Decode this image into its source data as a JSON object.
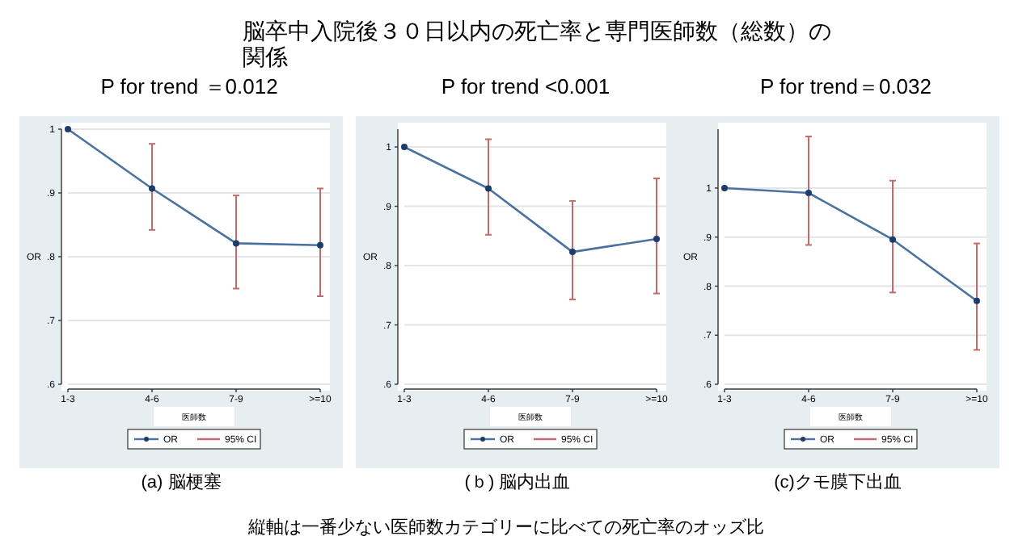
{
  "chart_data": [
    {
      "type": "line",
      "title": "P for trend ＝0.012",
      "xlabel": "医師数",
      "ylabel": "OR",
      "categories": [
        "1-3",
        "4-6",
        "7-9",
        ">=10"
      ],
      "series": [
        {
          "name": "OR",
          "color": "#4a72a0",
          "values": [
            1.0,
            0.907,
            0.821,
            0.818
          ],
          "errors": [
            null,
            [
              0.842,
              0.977
            ],
            [
              0.75,
              0.896
            ],
            [
              0.738,
              0.907
            ]
          ]
        }
      ],
      "ylim": [
        0.6,
        1.0
      ],
      "yticks": [
        {
          "value": 0.6,
          "label": ".6"
        },
        {
          "value": 0.7,
          "label": ".7"
        },
        {
          "value": 0.8,
          "label": ".8"
        },
        {
          "value": 0.9,
          "label": ".9"
        },
        {
          "value": 1,
          "label": "1"
        }
      ],
      "grid": "y",
      "marker": "circle",
      "legend": "bottom",
      "annotations": [
        "95% CI",
        "(a) 脳梗塞"
      ]
    },
    {
      "type": "line",
      "title": "P for trend <0.001",
      "xlabel": "医師数",
      "ylabel": "OR",
      "categories": [
        "1-3",
        "4-6",
        "7-9",
        ">=10"
      ],
      "series": [
        {
          "name": "OR",
          "color": "#4a72a0",
          "values": [
            1.0,
            0.93,
            0.823,
            0.845
          ],
          "errors": [
            null,
            [
              0.852,
              1.013
            ],
            [
              0.743,
              0.909
            ],
            [
              0.753,
              0.947
            ]
          ]
        }
      ],
      "ylim": [
        0.6,
        1.03
      ],
      "yticks": [
        {
          "value": 0.6,
          "label": ".6"
        },
        {
          "value": 0.7,
          "label": ".7"
        },
        {
          "value": 0.8,
          "label": ".8"
        },
        {
          "value": 0.9,
          "label": ".9"
        },
        {
          "value": 1,
          "label": "1"
        }
      ],
      "grid": "y",
      "marker": "circle",
      "legend": "bottom",
      "annotations": [
        "95% CI",
        "(ｂ) 脳内出血"
      ]
    },
    {
      "type": "line",
      "title": "P for trend＝0.032",
      "xlabel": "医師数",
      "ylabel": "OR",
      "categories": [
        "1-3",
        "4-6",
        "7-9",
        ">=10"
      ],
      "series": [
        {
          "name": "OR",
          "color": "#4a72a0",
          "values": [
            1.0,
            0.99,
            0.895,
            0.77
          ],
          "errors": [
            null,
            [
              0.884,
              1.105
            ],
            [
              0.787,
              1.015
            ],
            [
              0.67,
              0.887
            ]
          ]
        }
      ],
      "ylim": [
        0.6,
        1.12
      ],
      "yticks": [
        {
          "value": 0.6,
          "label": ".6"
        },
        {
          "value": 0.7,
          "label": ".7"
        },
        {
          "value": 0.8,
          "label": ".8"
        },
        {
          "value": 0.9,
          "label": ".9"
        },
        {
          "value": 1,
          "label": "1"
        }
      ],
      "grid": "y",
      "marker": "circle",
      "legend": "bottom",
      "annotations": [
        "95% CI",
        "(c)クモ膜下出血"
      ]
    },
    {
      "type": "other",
      "title": "脳卒中入院後３０日以内の死亡率と専門医師数（総数）の関係",
      "annotations": [
        "縦軸は一番少ない医師数カテゴリーに比べての死亡率のオッズ比"
      ]
    }
  ]
}
